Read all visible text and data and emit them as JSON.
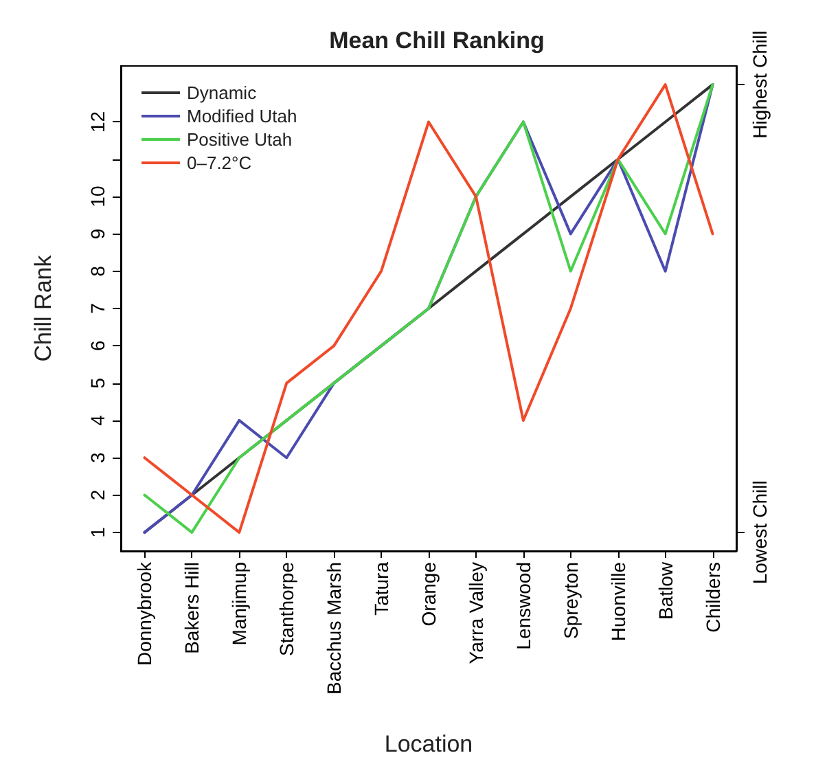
{
  "chart_data": {
    "type": "line",
    "title": "Mean Chill Ranking",
    "xlabel": "Location",
    "ylabel": "Chill Rank",
    "categories": [
      "Donnybrook",
      "Bakers Hill",
      "Manjimup",
      "Stanthorpe",
      "Bacchus Marsh",
      "Tatura",
      "Orange",
      "Yarra Valley",
      "Lenswood",
      "Spreyton",
      "Huonville",
      "Batlow",
      "Childers"
    ],
    "series": [
      {
        "name": "Dynamic",
        "color": "#333333",
        "values": [
          1,
          2,
          3,
          4,
          5,
          6,
          7,
          8,
          9,
          10,
          11,
          12,
          13
        ]
      },
      {
        "name": "Modified Utah",
        "color": "#4b4bb0",
        "values": [
          1,
          2,
          4,
          3,
          5,
          6,
          7,
          10,
          12,
          9,
          11,
          8,
          13
        ]
      },
      {
        "name": "Positive Utah",
        "color": "#4cd04c",
        "values": [
          2,
          1,
          3,
          4,
          5,
          6,
          7,
          10,
          12,
          8,
          11,
          9,
          13
        ]
      },
      {
        "name": "0–7.2°C",
        "color": "#f04a2a",
        "values": [
          3,
          2,
          1,
          5,
          6,
          8,
          12,
          10,
          4,
          7,
          11,
          13,
          9
        ]
      }
    ],
    "ylim": [
      0.5,
      13.5
    ],
    "yticks": [
      1,
      2,
      3,
      4,
      5,
      6,
      7,
      8,
      9,
      10,
      {
        "value": 11,
        "label": null
      },
      12
    ],
    "annotations": [
      "Lowest Chill",
      "Highest Chill"
    ],
    "grid": false,
    "legend": "top left",
    "marker": "none",
    "line_style": "solid"
  }
}
